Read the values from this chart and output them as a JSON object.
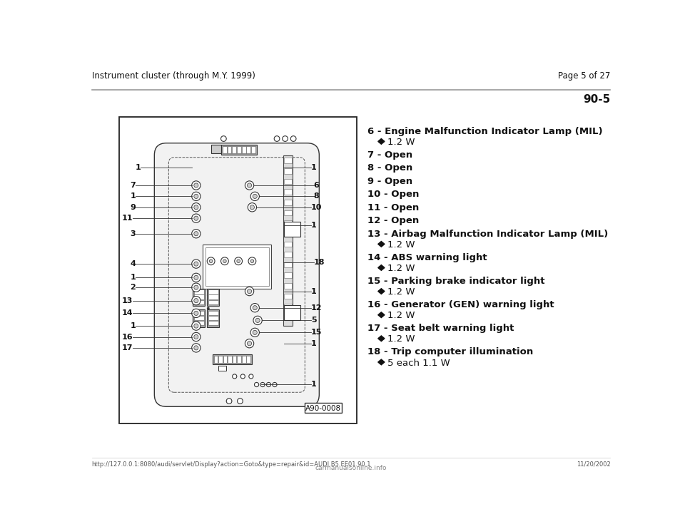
{
  "header_left": "Instrument cluster (through M.Y. 1999)",
  "header_right": "Page 5 of 27",
  "section_number": "90-5",
  "diagram_label": "A90-0008",
  "footer_url": "http://127.0.0.1:8080/audi/servlet/Display?action=Goto&type=repair&id=AUDI.B5.EE01.90.1",
  "footer_date": "11/20/2002",
  "footer_site": "carmanualsonline.info",
  "items": [
    {
      "num": "6",
      "label": "Engine Malfunction Indicator Lamp (MIL)",
      "sub": "1.2 W",
      "bold": true
    },
    {
      "num": "7",
      "label": "Open",
      "sub": null,
      "bold": true
    },
    {
      "num": "8",
      "label": "Open",
      "sub": null,
      "bold": true
    },
    {
      "num": "9",
      "label": "Open",
      "sub": null,
      "bold": true
    },
    {
      "num": "10",
      "label": "Open",
      "sub": null,
      "bold": true
    },
    {
      "num": "11",
      "label": "Open",
      "sub": null,
      "bold": true
    },
    {
      "num": "12",
      "label": "Open",
      "sub": null,
      "bold": true
    },
    {
      "num": "13",
      "label": "Airbag Malfunction Indicator Lamp (MIL)",
      "sub": "1.2 W",
      "bold": true
    },
    {
      "num": "14",
      "label": "ABS warning light",
      "sub": "1.2 W",
      "bold": true
    },
    {
      "num": "15",
      "label": "Parking brake indicator light",
      "sub": "1.2 W",
      "bold": true
    },
    {
      "num": "16",
      "label": "Generator (GEN) warning light",
      "sub": "1.2 W",
      "bold": true
    },
    {
      "num": "17",
      "label": "Seat belt warning light",
      "sub": "1.2 W",
      "bold": true
    },
    {
      "num": "18",
      "label": "Trip computer illumination",
      "sub": "5 each 1.1 W",
      "bold": true
    }
  ],
  "bg_color": "#ffffff",
  "text_color": "#000000",
  "header_line_color": "#999999"
}
